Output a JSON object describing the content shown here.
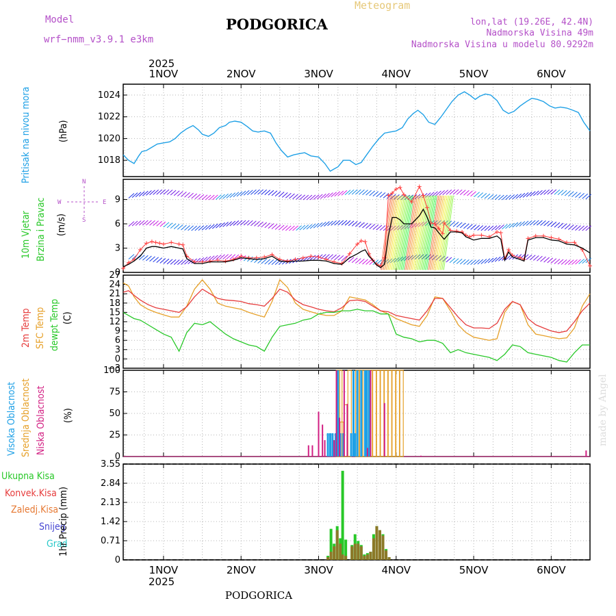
{
  "header": {
    "model_label": "Model",
    "model_name": "wrf−nmm_v3.9.1 e3km",
    "title": "PODGORICA",
    "meteogram": "Meteogram",
    "lonlat": "lon,lat (19.26E, 42.4N)",
    "elevation": "Nadmorska Visina 49m",
    "model_elevation": "Nadmorska Visina u modelu 80.9292m",
    "footer_station": "PODGORICA",
    "credit": "made by Angel"
  },
  "colors": {
    "pressure": "#1ea0e6",
    "temp2m": "#e63c3c",
    "sfc_temp": "#e6a028",
    "dewpt": "#28c828",
    "high_cloud": "#1ea0e6",
    "mid_cloud": "#e6a028",
    "low_cloud": "#d21e82",
    "precip_total": "#28c828",
    "precip_conv": "#e63c3c",
    "precip_zaledj": "#e67832",
    "snow": "#4646d2",
    "hail": "#28c8c8",
    "wind_label": "#28c828",
    "purple": "#b450c8"
  },
  "chart_data": [
    {
      "id": "time-axis",
      "type": "line",
      "year": "2025",
      "days": [
        {
          "label": "1NOV",
          "x": 1
        },
        {
          "label": "2NOV",
          "x": 2
        },
        {
          "label": "3NOV",
          "x": 3
        },
        {
          "label": "4NOV",
          "x": 4
        },
        {
          "label": "5NOV",
          "x": 5
        },
        {
          "label": "6NOV",
          "x": 6
        }
      ],
      "xlim": [
        0.48,
        6.5
      ]
    },
    {
      "id": "pressure",
      "type": "line",
      "ylabel_left": "Pritisak na nivou mora",
      "unit": "(hPa)",
      "ylim": [
        1016.5,
        1025.0
      ],
      "yticks": [
        1018,
        1020,
        1022,
        1024
      ],
      "x": [
        0.48,
        0.55,
        0.62,
        0.68,
        0.72,
        0.78,
        0.85,
        0.92,
        1.0,
        1.08,
        1.15,
        1.22,
        1.3,
        1.38,
        1.45,
        1.5,
        1.58,
        1.65,
        1.72,
        1.8,
        1.85,
        1.92,
        2.0,
        2.08,
        2.15,
        2.22,
        2.3,
        2.38,
        2.45,
        2.52,
        2.6,
        2.68,
        2.75,
        2.82,
        2.9,
        3.0,
        3.08,
        3.15,
        3.2,
        3.25,
        3.32,
        3.4,
        3.48,
        3.55,
        3.62,
        3.7,
        3.78,
        3.85,
        3.92,
        4.0,
        4.08,
        4.15,
        4.22,
        4.28,
        4.35,
        4.42,
        4.5,
        4.58,
        4.65,
        4.72,
        4.8,
        4.88,
        4.95,
        5.02,
        5.08,
        5.15,
        5.22,
        5.3,
        5.38,
        5.45,
        5.52,
        5.6,
        5.68,
        5.75,
        5.82,
        5.9,
        5.98,
        6.05,
        6.12,
        6.2,
        6.28,
        6.35,
        6.42,
        6.5
      ],
      "values": [
        1018.5,
        1018.0,
        1017.7,
        1018.4,
        1018.8,
        1018.9,
        1019.2,
        1019.5,
        1019.6,
        1019.7,
        1020.0,
        1020.5,
        1020.9,
        1021.2,
        1020.8,
        1020.4,
        1020.2,
        1020.5,
        1021.0,
        1021.2,
        1021.5,
        1021.6,
        1021.5,
        1021.1,
        1020.7,
        1020.6,
        1020.7,
        1020.5,
        1019.6,
        1018.9,
        1018.3,
        1018.5,
        1018.6,
        1018.7,
        1018.4,
        1018.3,
        1017.7,
        1017.0,
        1017.2,
        1017.4,
        1018.0,
        1018.0,
        1017.6,
        1017.8,
        1018.5,
        1019.3,
        1020.0,
        1020.5,
        1020.6,
        1020.7,
        1021.0,
        1021.8,
        1022.3,
        1022.6,
        1022.2,
        1021.5,
        1021.3,
        1022.0,
        1022.7,
        1023.4,
        1024.0,
        1024.3,
        1024.0,
        1023.6,
        1023.9,
        1024.1,
        1024.0,
        1023.5,
        1022.6,
        1022.3,
        1022.5,
        1023.0,
        1023.4,
        1023.7,
        1023.6,
        1023.4,
        1023.0,
        1022.8,
        1022.9,
        1022.8,
        1022.6,
        1022.4,
        1021.5,
        1020.7
      ]
    },
    {
      "id": "wind",
      "type": "line",
      "ylabel_left_1": "10m Vjetar",
      "ylabel_left_2": "Brzina i Pravac",
      "unit": "(m/s)",
      "compass": {
        "w": "W",
        "e": "E",
        "n": "N",
        "s": "S"
      },
      "ylim": [
        0,
        11.5
      ],
      "yticks": [
        0,
        3,
        6,
        9
      ],
      "x": [
        0.48,
        0.55,
        0.62,
        0.7,
        0.78,
        0.85,
        0.9,
        0.95,
        1.0,
        1.1,
        1.2,
        1.25,
        1.3,
        1.4,
        1.5,
        1.6,
        1.7,
        1.8,
        1.9,
        2.0,
        2.1,
        2.2,
        2.3,
        2.4,
        2.5,
        2.6,
        2.7,
        2.8,
        2.9,
        3.0,
        3.1,
        3.2,
        3.3,
        3.4,
        3.5,
        3.55,
        3.6,
        3.65,
        3.7,
        3.75,
        3.8,
        3.85,
        3.9,
        3.95,
        4.0,
        4.05,
        4.1,
        4.2,
        4.3,
        4.35,
        4.4,
        4.45,
        4.5,
        4.55,
        4.6,
        4.62,
        4.7,
        4.78,
        4.85,
        4.9,
        4.95,
        5.0,
        5.1,
        5.2,
        5.3,
        5.35,
        5.4,
        5.45,
        5.5,
        5.6,
        5.65,
        5.7,
        5.8,
        5.9,
        6.0,
        6.1,
        6.2,
        6.3,
        6.4,
        6.5
      ],
      "speed": [
        0.7,
        1.0,
        1.4,
        2.0,
        3.0,
        3.2,
        3.2,
        3.1,
        3.0,
        3.2,
        3.0,
        2.9,
        1.7,
        1.1,
        1.1,
        1.3,
        1.3,
        1.3,
        1.5,
        1.8,
        1.7,
        1.6,
        1.7,
        2.0,
        1.4,
        1.3,
        1.4,
        1.4,
        1.5,
        1.5,
        1.4,
        1.1,
        1.0,
        1.8,
        2.3,
        2.6,
        2.8,
        2.0,
        1.5,
        0.9,
        0.6,
        1.0,
        4.5,
        6.8,
        6.8,
        6.5,
        6.0,
        6.0,
        7.0,
        7.8,
        6.8,
        5.6,
        5.5,
        4.9,
        4.3,
        4.1,
        5.0,
        5.0,
        4.9,
        4.4,
        4.2,
        4.0,
        4.2,
        4.2,
        4.5,
        4.1,
        1.5,
        2.5,
        1.9,
        1.6,
        1.4,
        4.0,
        4.3,
        4.3,
        4.0,
        3.9,
        3.5,
        3.4,
        3.0,
        2.4
      ],
      "gust": [
        0.5,
        1.2,
        1.6,
        2.8,
        3.6,
        3.8,
        3.7,
        3.6,
        3.5,
        3.7,
        3.5,
        3.4,
        2.0,
        1.3,
        1.3,
        1.4,
        1.5,
        1.4,
        1.6,
        2.0,
        1.8,
        1.8,
        1.9,
        2.2,
        1.6,
        1.4,
        1.6,
        1.8,
        2.0,
        1.9,
        1.6,
        1.3,
        1.1,
        2.3,
        3.5,
        3.9,
        3.8,
        2.3,
        1.5,
        1.0,
        0.8,
        1.8,
        9.5,
        9.8,
        10.3,
        10.5,
        9.6,
        8.7,
        10.6,
        9.5,
        8.0,
        6.1,
        6.0,
        5.4,
        4.8,
        6.1,
        5.2,
        5.1,
        5.0,
        4.6,
        4.4,
        4.6,
        4.6,
        4.4,
        5.0,
        4.9,
        1.7,
        2.8,
        2.1,
        1.8,
        1.6,
        4.2,
        4.5,
        4.5,
        4.3,
        4.1,
        3.7,
        3.7,
        2.8,
        0.8
      ]
    },
    {
      "id": "temperature",
      "type": "line",
      "ylabel_2m": "2m Temp",
      "ylabel_sfc": "SFC Temp",
      "ylabel_dewpt": "dewpt Temp",
      "unit": "(C)",
      "ylim": [
        -3,
        27
      ],
      "yticks": [
        -3,
        0,
        3,
        6,
        9,
        12,
        15,
        18,
        21,
        24,
        27
      ],
      "x": [
        0.48,
        0.55,
        0.62,
        0.7,
        0.8,
        0.9,
        1.0,
        1.1,
        1.2,
        1.3,
        1.4,
        1.5,
        1.6,
        1.7,
        1.8,
        1.9,
        2.0,
        2.1,
        2.2,
        2.3,
        2.4,
        2.5,
        2.6,
        2.7,
        2.8,
        2.9,
        3.0,
        3.1,
        3.2,
        3.3,
        3.4,
        3.5,
        3.6,
        3.7,
        3.8,
        3.9,
        4.0,
        4.1,
        4.2,
        4.3,
        4.4,
        4.5,
        4.6,
        4.7,
        4.8,
        4.9,
        5.0,
        5.1,
        5.2,
        5.3,
        5.4,
        5.5,
        5.6,
        5.7,
        5.8,
        5.9,
        6.0,
        6.1,
        6.2,
        6.3,
        6.4,
        6.5
      ],
      "temp2m": [
        21.5,
        22.0,
        20.5,
        19.0,
        17.5,
        16.5,
        16.0,
        15.5,
        15.0,
        16.8,
        20.0,
        22.5,
        21.0,
        19.5,
        19.0,
        18.8,
        18.5,
        17.8,
        17.5,
        17.0,
        19.5,
        22.5,
        21.5,
        19.0,
        17.5,
        16.8,
        16.0,
        15.5,
        15.2,
        16.5,
        18.8,
        19.0,
        18.5,
        17.0,
        15.5,
        15.2,
        14.0,
        13.5,
        13.0,
        12.5,
        15.5,
        19.5,
        19.5,
        16.5,
        13.5,
        11.0,
        10.0,
        10.0,
        9.8,
        11.5,
        16.0,
        18.5,
        17.5,
        13.0,
        11.0,
        10.0,
        9.0,
        8.5,
        9.0,
        12.0,
        15.5,
        18.0
      ],
      "sfc": [
        24.5,
        23.5,
        20.0,
        17.5,
        16.0,
        15.0,
        14.2,
        13.5,
        13.5,
        17.0,
        22.5,
        25.5,
        22.5,
        18.0,
        17.0,
        16.5,
        16.0,
        15.0,
        14.2,
        13.5,
        18.5,
        25.5,
        23.0,
        18.0,
        16.0,
        15.2,
        14.5,
        14.0,
        14.0,
        15.5,
        20.0,
        19.5,
        19.0,
        17.5,
        15.5,
        14.5,
        13.0,
        12.0,
        11.0,
        10.5,
        14.0,
        20.0,
        19.5,
        15.5,
        11.0,
        8.5,
        7.0,
        6.5,
        6.0,
        6.5,
        15.0,
        18.5,
        17.5,
        11.0,
        8.0,
        7.5,
        7.0,
        6.5,
        6.8,
        10.0,
        17.0,
        21.0
      ],
      "dewpt": [
        15.0,
        14.0,
        13.0,
        12.5,
        11.0,
        9.5,
        8.0,
        7.0,
        2.5,
        8.5,
        11.5,
        11.0,
        12.0,
        10.0,
        8.0,
        6.5,
        5.5,
        4.5,
        4.0,
        2.5,
        7.0,
        10.5,
        11.0,
        11.5,
        12.5,
        13.0,
        14.5,
        15.0,
        15.0,
        15.5,
        15.5,
        16.0,
        15.5,
        15.5,
        14.5,
        14.5,
        8.0,
        7.0,
        6.5,
        5.5,
        6.0,
        6.0,
        5.0,
        2.0,
        3.0,
        2.0,
        1.5,
        1.0,
        0.5,
        -0.5,
        1.5,
        4.5,
        4.0,
        2.0,
        1.5,
        1.0,
        0.5,
        -0.5,
        -1.0,
        2.0,
        4.5,
        4.5
      ]
    },
    {
      "id": "clouds",
      "type": "bar",
      "ylabel_high": "Visoka Oblacnost",
      "ylabel_mid": "Srednja Oblacnost",
      "ylabel_low": "Niska Oblacnost",
      "unit": "(%)",
      "ylim": [
        0,
        100
      ],
      "yticks": [
        0,
        25,
        50,
        75,
        100
      ],
      "high": {
        "x": [
          3.12,
          3.15,
          3.18,
          3.22,
          3.25,
          3.28,
          3.32,
          3.42,
          3.45,
          3.47,
          3.5,
          3.55,
          3.6,
          3.62,
          3.65
        ],
        "values": [
          27,
          27,
          27,
          27,
          100,
          27,
          27,
          27,
          100,
          27,
          100,
          100,
          100,
          100,
          100
        ]
      },
      "mid": {
        "x": [
          3.25,
          3.28,
          3.3,
          3.35,
          3.4,
          3.5,
          3.55,
          3.58,
          3.62,
          3.67,
          3.72,
          3.77,
          3.82,
          3.87,
          3.92,
          3.97,
          4.02,
          4.07
        ],
        "values": [
          100,
          100,
          40,
          60,
          100,
          100,
          100,
          100,
          100,
          100,
          100,
          100,
          100,
          100,
          100,
          100,
          100,
          100
        ]
      },
      "low": {
        "x": [
          2.87,
          2.92,
          3.0,
          3.05,
          3.08,
          3.2,
          3.23,
          3.27,
          3.33,
          3.37,
          3.63,
          3.67,
          3.85,
          4.32,
          6.45
        ],
        "values": [
          13,
          13,
          52,
          37,
          19,
          19,
          100,
          45,
          100,
          61,
          10,
          100,
          62,
          1,
          7
        ]
      }
    },
    {
      "id": "precip",
      "type": "bar",
      "ylabel_total": "Ukupna Kisa",
      "ylabel_conv": "Konvek.Kisa",
      "ylabel_zaledj": "Zaledj.Kisa",
      "ylabel_snow": "Snijeg",
      "ylabel_hail": "Grad",
      "unit": "1hr Precip (mm)",
      "ylim": [
        0,
        3.55
      ],
      "yticks": [
        0,
        0.71,
        1.42,
        2.13,
        2.84,
        3.55
      ],
      "total": {
        "x": [
          3.12,
          3.16,
          3.2,
          3.24,
          3.28,
          3.31,
          3.35,
          3.43,
          3.47,
          3.51,
          3.55,
          3.59,
          3.63,
          3.67,
          3.71,
          3.75,
          3.79,
          3.83,
          3.87,
          3.91
        ],
        "values": [
          0.15,
          1.15,
          0.6,
          1.25,
          0.8,
          3.3,
          0.75,
          0.55,
          0.95,
          0.7,
          0.55,
          0.2,
          0.25,
          0.3,
          0.95,
          1.25,
          1.1,
          0.95,
          0.4,
          0.1
        ]
      },
      "conv": {
        "x": [
          3.12,
          3.16,
          3.2,
          3.24,
          3.28,
          3.31,
          3.35,
          3.43,
          3.47,
          3.51,
          3.55,
          3.59,
          3.63,
          3.67,
          3.71,
          3.75,
          3.79,
          3.83,
          3.87,
          3.91
        ],
        "values": [
          0.1,
          0.3,
          0.5,
          1.1,
          0.6,
          0.2,
          0.15,
          0.5,
          0.6,
          0.6,
          0.5,
          0.15,
          0.2,
          0.3,
          0.8,
          1.25,
          1.1,
          0.9,
          0.35,
          0.1
        ]
      }
    }
  ]
}
